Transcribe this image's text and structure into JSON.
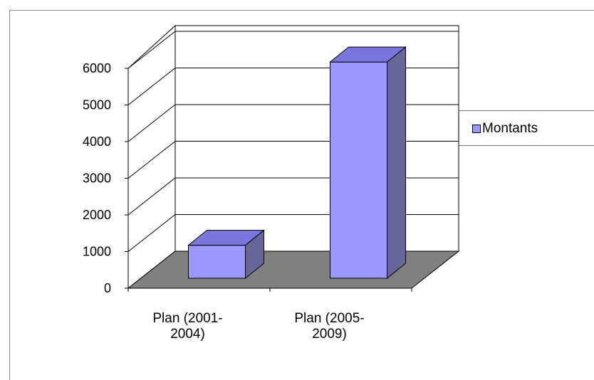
{
  "chart_data": {
    "type": "bar",
    "categories": [
      [
        "Plan (2001-",
        "2004)"
      ],
      [
        "Plan (2005-",
        "2009)"
      ]
    ],
    "series": [
      {
        "name": "Montants",
        "values": [
          900,
          5900
        ],
        "color": "#9999ff"
      }
    ],
    "yticks": [
      "0",
      "1000",
      "2000",
      "3000",
      "4000",
      "5000",
      "6000"
    ],
    "ylim": [
      0,
      6000
    ],
    "title": "",
    "xlabel": "",
    "ylabel": "",
    "grid": true,
    "legend": "right",
    "floor_color": "#808080"
  }
}
